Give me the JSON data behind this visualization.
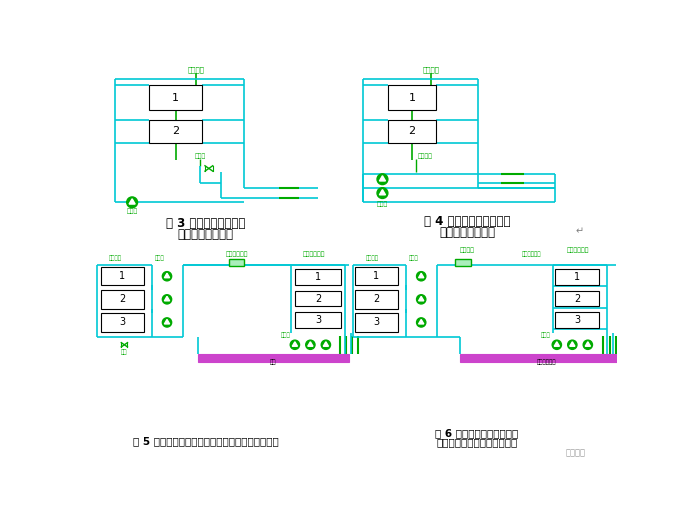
{
  "bg_color": "#ffffff",
  "cyan": "#00c8d4",
  "green": "#00aa00",
  "black": "#000000",
  "pink": "#cc44cc",
  "fig3_caption1": "图 3 采用旁通混合提高",
  "fig3_caption2": "燃气锅炉进水温度",
  "fig4_caption1": "图 4 采用混水泵混合提高",
  "fig4_caption2": "燃气锅炉进水温度",
  "fig5_caption": "图 5 防止燃气锅炉烟气冷凝的采暖热源两级泵系统",
  "fig6_caption1": "图 6 防止燃气锅炉烟气冷凝",
  "fig6_caption2": "并提供低温热媒的两级泵系统",
  "lbl_boiler": "燃气锅炉",
  "lbl_bypass": "旁通阀",
  "lbl_pump3": "采暖泵",
  "lbl_mixpump": "混合水泵",
  "lbl_pump4": "采暖泵",
  "lbl_1pump": "一级泵",
  "lbl_hotmain": "采暖热水总管",
  "lbl_userunit": "热力供暖机组",
  "lbl_2pump": "二级泵",
  "lbl_return": "采暖",
  "lbl_lowtemp": "低温热媒",
  "lbl_drain": "排污",
  "lbl_lowtempmain": "低温热媒总管",
  "watermark": "暖通南社"
}
